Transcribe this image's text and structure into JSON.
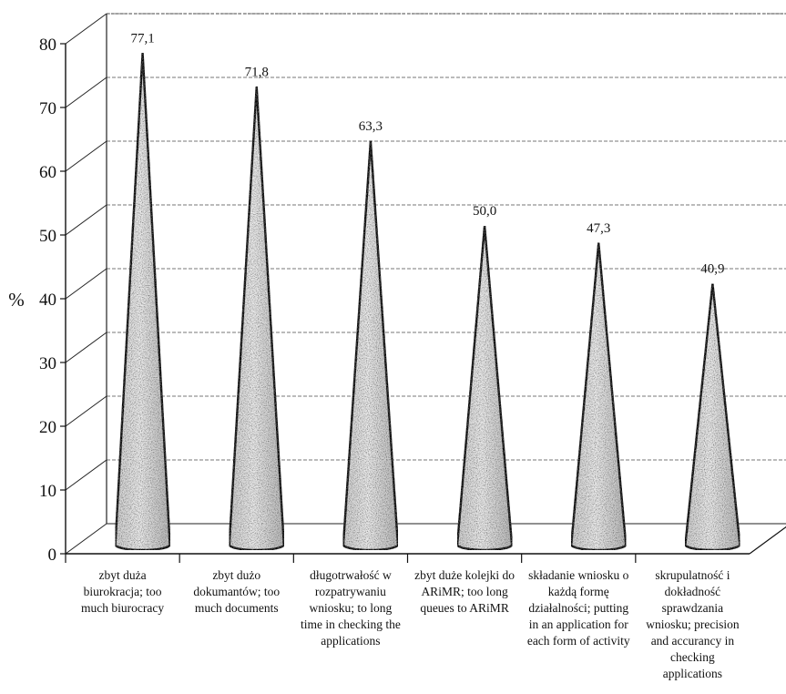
{
  "chart_data": {
    "type": "bar",
    "shape": "cone",
    "three_d": true,
    "title": "",
    "xlabel": "",
    "ylabel": "%",
    "ylim": [
      0,
      80
    ],
    "yticks": [
      0,
      10,
      20,
      30,
      40,
      50,
      60,
      70,
      80
    ],
    "grid": true,
    "legend": "none",
    "categories": [
      [
        "zbyt duża",
        "biurokracja; too",
        "much biurocracy"
      ],
      [
        "zbyt dużo",
        "dokumantów; too",
        "much documents"
      ],
      [
        "długotrwałość w",
        "rozpatrywaniu",
        "wniosku; to long",
        "time in checking the",
        "applications"
      ],
      [
        "zbyt duże kolejki do",
        "ARiMR; too long",
        "queues to ARiMR"
      ],
      [
        "składanie wniosku o",
        "każdą formę",
        "działalności; putting",
        "in an application for",
        "each form of activity"
      ],
      [
        "skrupulatność i",
        "dokładność",
        "sprawdzania",
        "wniosku; precision",
        "and accurancy in",
        "checking",
        "applications"
      ]
    ],
    "values": [
      77.1,
      71.8,
      63.3,
      50.0,
      47.3,
      40.9
    ],
    "value_labels": [
      "77,1",
      "71,8",
      "63,3",
      "50,0",
      "47,3",
      "40,9"
    ],
    "colors": {
      "cone_fill": "#d9d9d9",
      "cone_stroke": "#000000",
      "grid": "#777777"
    }
  }
}
